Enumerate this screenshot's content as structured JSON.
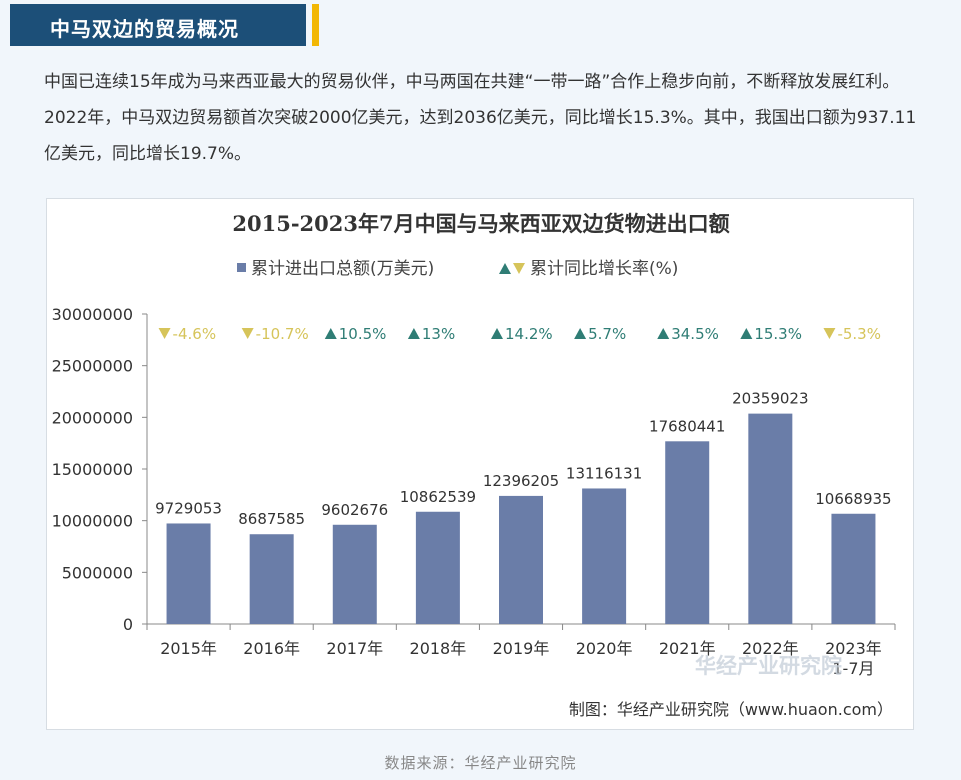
{
  "section": {
    "title": "中马双边的贸易概况",
    "accent_color": "#f2b705",
    "header_color": "#1c4f78"
  },
  "intro": {
    "text": "中国已连续15年成为马来西亚最大的贸易伙伴，中马两国在共建“一带一路”合作上稳步向前，不断释放发展红利。2022年，中马双边贸易额首次突破2000亿美元，达到2036亿美元，同比增长15.3%。其中，我国出口额为937.11亿美元，同比增长19.7%。"
  },
  "chart_data": {
    "type": "bar",
    "title": "2015-2023年7月中国与马来西亚双边货物进出口额",
    "legend": {
      "bar_label": "累计进出口总额(万美元)",
      "growth_label": "累计同比增长率(%)",
      "placement": "top-center"
    },
    "categories": [
      "2015年",
      "2016年",
      "2017年",
      "2018年",
      "2019年",
      "2020年",
      "2021年",
      "2022年",
      "2023年\n1-7月"
    ],
    "values": [
      9729053,
      8687585,
      9602676,
      10862539,
      12396205,
      13116131,
      17680441,
      20359023,
      10668935
    ],
    "value_labels": [
      "9729053",
      "8687585",
      "9602676",
      "10862539",
      "12396205",
      "13116131",
      "17680441",
      "20359023",
      "10668935"
    ],
    "growth": [
      {
        "label": "-4.6%",
        "direction": "down"
      },
      {
        "label": "-10.7%",
        "direction": "down"
      },
      {
        "label": "10.5%",
        "direction": "up"
      },
      {
        "label": "13%",
        "direction": "up"
      },
      {
        "label": "14.2%",
        "direction": "up"
      },
      {
        "label": "5.7%",
        "direction": "up"
      },
      {
        "label": "34.5%",
        "direction": "up"
      },
      {
        "label": "15.3%",
        "direction": "up"
      },
      {
        "label": "-5.3%",
        "direction": "down"
      }
    ],
    "ylim": [
      0,
      30000000
    ],
    "yticks": [
      0,
      5000000,
      10000000,
      15000000,
      20000000,
      25000000,
      30000000
    ],
    "ytick_labels": [
      "0",
      "5000000",
      "10000000",
      "15000000",
      "20000000",
      "25000000",
      "30000000"
    ],
    "xlabel": "",
    "ylabel": "",
    "grid": false,
    "colors": {
      "bar": "#6a7da8",
      "up": "#2f7d75",
      "down": "#d6c45a",
      "axis": "#888888"
    },
    "watermark": "华经产业研究院",
    "credit": "制图：华经产业研究院（www.huaon.com）"
  },
  "footer": {
    "source": "数据来源：华经产业研究院"
  }
}
